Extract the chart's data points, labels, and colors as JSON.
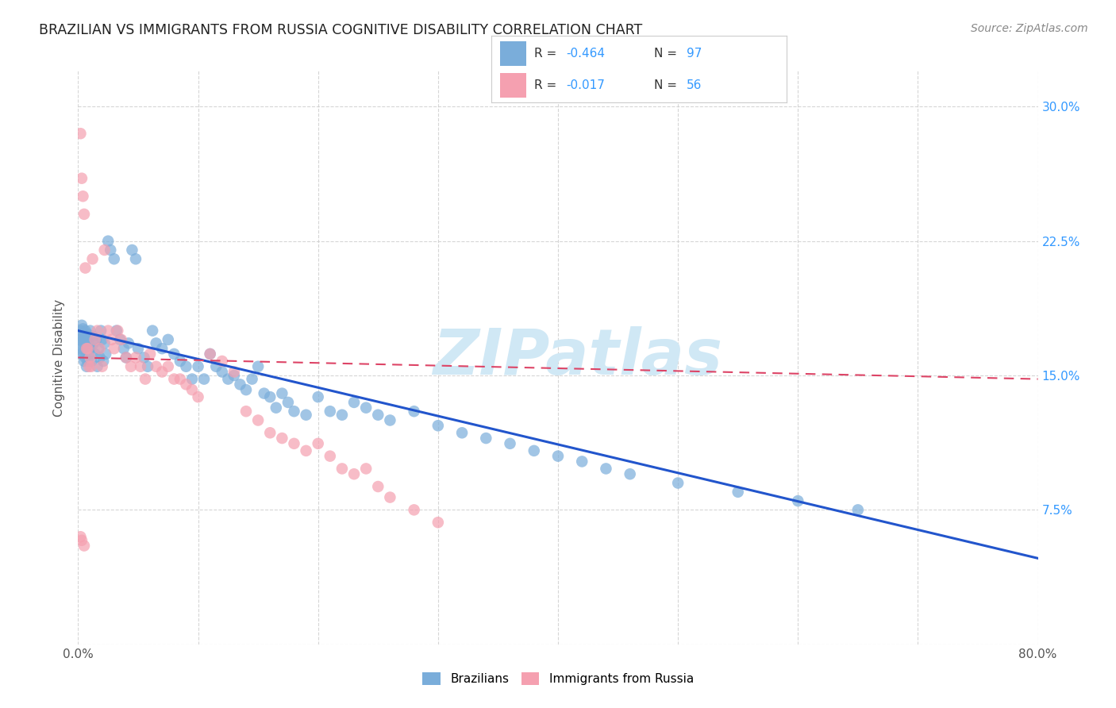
{
  "title": "BRAZILIAN VS IMMIGRANTS FROM RUSSIA COGNITIVE DISABILITY CORRELATION CHART",
  "source": "Source: ZipAtlas.com",
  "ylabel": "Cognitive Disability",
  "xlim": [
    0.0,
    0.8
  ],
  "ylim": [
    0.0,
    0.32
  ],
  "xticks": [
    0.0,
    0.1,
    0.2,
    0.3,
    0.4,
    0.5,
    0.6,
    0.7,
    0.8
  ],
  "xticklabels": [
    "0.0%",
    "",
    "",
    "",
    "",
    "",
    "",
    "",
    "80.0%"
  ],
  "yticks": [
    0.0,
    0.075,
    0.15,
    0.225,
    0.3
  ],
  "yticklabels": [
    "",
    "7.5%",
    "15.0%",
    "22.5%",
    "30.0%"
  ],
  "grid_color": "#cccccc",
  "background_color": "#ffffff",
  "watermark_text": "ZIPatlas",
  "watermark_color": "#d0e8f5",
  "series1_label": "Brazilians",
  "series1_color": "#7aadda",
  "series1_R": "-0.464",
  "series1_N": "97",
  "series2_label": "Immigrants from Russia",
  "series2_color": "#f5a0b0",
  "series2_R": "-0.017",
  "series2_N": "56",
  "trendline1_color": "#2255cc",
  "trendline2_color": "#dd4466",
  "trendline1_x_start": 0.0,
  "trendline1_x_end": 0.8,
  "trendline1_y_start": 0.175,
  "trendline1_y_end": 0.048,
  "trendline2_x_start": 0.0,
  "trendline2_x_end": 0.8,
  "trendline2_y_start": 0.16,
  "trendline2_y_end": 0.148,
  "series1_x": [
    0.002,
    0.002,
    0.002,
    0.003,
    0.003,
    0.003,
    0.003,
    0.004,
    0.004,
    0.004,
    0.005,
    0.005,
    0.005,
    0.006,
    0.006,
    0.007,
    0.007,
    0.007,
    0.008,
    0.008,
    0.009,
    0.009,
    0.01,
    0.01,
    0.011,
    0.012,
    0.013,
    0.014,
    0.015,
    0.016,
    0.017,
    0.018,
    0.019,
    0.02,
    0.021,
    0.022,
    0.023,
    0.025,
    0.027,
    0.03,
    0.032,
    0.035,
    0.038,
    0.04,
    0.042,
    0.045,
    0.048,
    0.05,
    0.055,
    0.058,
    0.062,
    0.065,
    0.07,
    0.075,
    0.08,
    0.085,
    0.09,
    0.095,
    0.1,
    0.105,
    0.11,
    0.115,
    0.12,
    0.125,
    0.13,
    0.135,
    0.14,
    0.145,
    0.15,
    0.155,
    0.16,
    0.165,
    0.17,
    0.175,
    0.18,
    0.19,
    0.2,
    0.21,
    0.22,
    0.23,
    0.24,
    0.25,
    0.26,
    0.28,
    0.3,
    0.32,
    0.34,
    0.36,
    0.38,
    0.4,
    0.42,
    0.44,
    0.46,
    0.5,
    0.55,
    0.6,
    0.65
  ],
  "series1_y": [
    0.17,
    0.175,
    0.168,
    0.172,
    0.165,
    0.178,
    0.162,
    0.17,
    0.163,
    0.176,
    0.168,
    0.172,
    0.158,
    0.175,
    0.16,
    0.17,
    0.165,
    0.155,
    0.173,
    0.158,
    0.168,
    0.162,
    0.175,
    0.165,
    0.158,
    0.172,
    0.168,
    0.162,
    0.17,
    0.155,
    0.165,
    0.16,
    0.175,
    0.17,
    0.158,
    0.168,
    0.162,
    0.225,
    0.22,
    0.215,
    0.175,
    0.17,
    0.165,
    0.16,
    0.168,
    0.22,
    0.215,
    0.165,
    0.16,
    0.155,
    0.175,
    0.168,
    0.165,
    0.17,
    0.162,
    0.158,
    0.155,
    0.148,
    0.155,
    0.148,
    0.162,
    0.155,
    0.152,
    0.148,
    0.15,
    0.145,
    0.142,
    0.148,
    0.155,
    0.14,
    0.138,
    0.132,
    0.14,
    0.135,
    0.13,
    0.128,
    0.138,
    0.13,
    0.128,
    0.135,
    0.132,
    0.128,
    0.125,
    0.13,
    0.122,
    0.118,
    0.115,
    0.112,
    0.108,
    0.105,
    0.102,
    0.098,
    0.095,
    0.09,
    0.085,
    0.08,
    0.075
  ],
  "series2_x": [
    0.002,
    0.003,
    0.004,
    0.005,
    0.006,
    0.007,
    0.008,
    0.009,
    0.01,
    0.011,
    0.012,
    0.014,
    0.016,
    0.018,
    0.02,
    0.022,
    0.025,
    0.028,
    0.03,
    0.033,
    0.036,
    0.04,
    0.044,
    0.048,
    0.052,
    0.056,
    0.06,
    0.065,
    0.07,
    0.075,
    0.08,
    0.085,
    0.09,
    0.095,
    0.1,
    0.11,
    0.12,
    0.13,
    0.14,
    0.15,
    0.16,
    0.17,
    0.18,
    0.19,
    0.2,
    0.21,
    0.22,
    0.23,
    0.24,
    0.25,
    0.26,
    0.28,
    0.3,
    0.002,
    0.003,
    0.005
  ],
  "series2_y": [
    0.285,
    0.26,
    0.25,
    0.24,
    0.21,
    0.165,
    0.165,
    0.155,
    0.16,
    0.155,
    0.215,
    0.17,
    0.175,
    0.165,
    0.155,
    0.22,
    0.175,
    0.17,
    0.165,
    0.175,
    0.17,
    0.16,
    0.155,
    0.16,
    0.155,
    0.148,
    0.162,
    0.155,
    0.152,
    0.155,
    0.148,
    0.148,
    0.145,
    0.142,
    0.138,
    0.162,
    0.158,
    0.152,
    0.13,
    0.125,
    0.118,
    0.115,
    0.112,
    0.108,
    0.112,
    0.105,
    0.098,
    0.095,
    0.098,
    0.088,
    0.082,
    0.075,
    0.068,
    0.06,
    0.058,
    0.055
  ]
}
